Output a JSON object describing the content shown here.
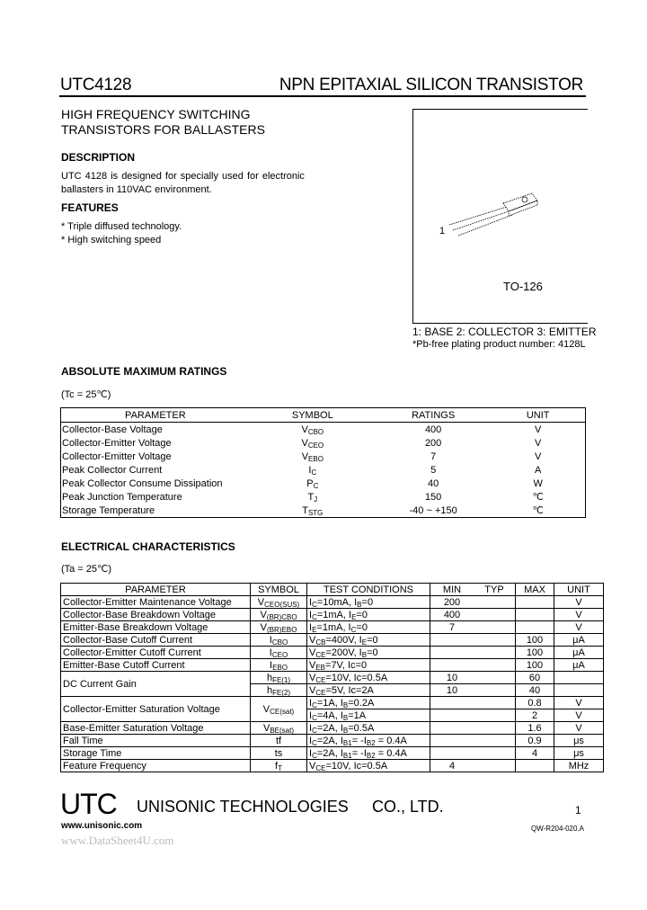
{
  "header": {
    "part": "UTC4128",
    "title": "NPN EPITAXIAL SILICON TRANSISTOR"
  },
  "headline": [
    "HIGH FREQUENCY SWITCHING",
    "TRANSISTORS FOR BALLASTERS"
  ],
  "description": {
    "heading": "DESCRIPTION",
    "lines": [
      "UTC  4128  is  designed  for  specially  used  for  electronic",
      "ballasters in 110VAC environment."
    ]
  },
  "features": {
    "heading": "FEATURES",
    "items": [
      "* Triple diffused technology.",
      "* High switching speed"
    ]
  },
  "package": {
    "name": "TO-126",
    "pin_label": "1",
    "pins": "1: BASE 2: COLLECTOR 3: EMITTER",
    "note": "*Pb-free plating product number: 4128L"
  },
  "abs_max": {
    "heading": "ABSOLUTE MAXIMUM RATINGS",
    "condition": "(Tc = 25℃)",
    "columns": [
      "PARAMETER",
      "SYMBOL",
      "RATINGS",
      "UNIT"
    ],
    "rows": [
      {
        "param": "Collector-Base Voltage",
        "sym": [
          "V",
          "CBO"
        ],
        "rating": "400",
        "unit": "V"
      },
      {
        "param": "Collector-Emitter Voltage",
        "sym": [
          "V",
          "CEO"
        ],
        "rating": "200",
        "unit": "V"
      },
      {
        "param": "Collector-Emitter Voltage",
        "sym": [
          "V",
          "EBO"
        ],
        "rating": "7",
        "unit": "V"
      },
      {
        "param": "Peak Collector Current",
        "sym": [
          "I",
          "C"
        ],
        "rating": "5",
        "unit": "A"
      },
      {
        "param": "Peak Collector Consume Dissipation",
        "sym": [
          "P",
          "C"
        ],
        "rating": "40",
        "unit": "W"
      },
      {
        "param": "Peak Junction Temperature",
        "sym": [
          "T",
          "J"
        ],
        "rating": "150",
        "unit": "℃"
      },
      {
        "param": "Storage Temperature",
        "sym": [
          "T",
          "STG"
        ],
        "rating": "-40 ~ +150",
        "unit": "℃"
      }
    ]
  },
  "electrical": {
    "heading": "ELECTRICAL CHARACTERISTICS",
    "condition": "(Ta = 25℃)",
    "columns": [
      "PARAMETER",
      "SYMBOL",
      "TEST CONDITIONS",
      "MIN",
      "TYP",
      "MAX",
      "UNIT"
    ],
    "rows": [
      {
        "param": "Collector-Emitter Maintenance Voltage",
        "sym": [
          "V",
          "CEO(SUS)"
        ],
        "cond": [
          "I",
          "C",
          "=10mA, I",
          "B",
          "=0"
        ],
        "min": "200",
        "typ": "",
        "max": "",
        "unit": "V"
      },
      {
        "param": "Collector-Base Breakdown Voltage",
        "sym": [
          "V",
          "(BR)CBO"
        ],
        "cond": [
          "I",
          "C",
          "=1mA, I",
          "E",
          "=0"
        ],
        "min": "400",
        "typ": "",
        "max": "",
        "unit": "V"
      },
      {
        "param": "Emitter-Base Breakdown Voltage",
        "sym": [
          "V",
          "(BR)EBO"
        ],
        "cond": [
          "I",
          "E",
          "=1mA, I",
          "C",
          "=0"
        ],
        "min": "7",
        "typ": "",
        "max": "",
        "unit": "V"
      },
      {
        "param": "Collector-Base Cutoff Current",
        "sym": [
          "I",
          "CBO"
        ],
        "cond": [
          "V",
          "CB",
          "=400V, I",
          "E",
          "=0"
        ],
        "min": "",
        "typ": "",
        "max": "100",
        "unit": "μA"
      },
      {
        "param": "Collector-Emitter Cutoff Current",
        "sym": [
          "I",
          "CEO"
        ],
        "cond": [
          "V",
          "CE",
          "=200V, I",
          "B",
          "=0"
        ],
        "min": "",
        "typ": "",
        "max": "100",
        "unit": "μA"
      },
      {
        "param": "Emitter-Base Cutoff Current",
        "sym": [
          "I",
          "EBO"
        ],
        "cond": [
          "V",
          "EB",
          "=7V, Ic=0"
        ],
        "min": "",
        "typ": "",
        "max": "100",
        "unit": "μA"
      },
      {
        "param": "DC Current Gain",
        "span": 2,
        "sym": [
          "h",
          "FE(1)"
        ],
        "cond": [
          "V",
          "CE",
          "=10V, Ic=0.5A"
        ],
        "min": "10",
        "typ": "",
        "max": "60",
        "unit": ""
      },
      {
        "sym": [
          "h",
          "FE(2)"
        ],
        "cond": [
          "V",
          "CE",
          "=5V, Ic=2A"
        ],
        "min": "10",
        "typ": "",
        "max": "40",
        "unit": ""
      },
      {
        "param": "Collector-Emitter Saturation Voltage",
        "span": 2,
        "sym": [
          "V",
          "CE(sat)"
        ],
        "symspan": 2,
        "cond": [
          "I",
          "C",
          "=1A, I",
          "B",
          "=0.2A"
        ],
        "min": "",
        "typ": "",
        "max": "0.8",
        "unit": "V"
      },
      {
        "cond": [
          "I",
          "C",
          "=4A, I",
          "B",
          "=1A"
        ],
        "min": "",
        "typ": "",
        "max": "2",
        "unit": "V"
      },
      {
        "param": "Base-Emitter Saturation Voltage",
        "sym": [
          "V",
          "BE(sat)"
        ],
        "cond": [
          "I",
          "C",
          "=2A, I",
          "B",
          "=0.5A"
        ],
        "min": "",
        "typ": "",
        "max": "1.6",
        "unit": "V"
      },
      {
        "param": "Fall Time",
        "sym": [
          "tf",
          ""
        ],
        "cond": [
          "I",
          "C",
          "=2A, I",
          "B1",
          "= -I",
          "B2",
          " = 0.4A"
        ],
        "min": "",
        "typ": "",
        "max": "0.9",
        "unit": "μs"
      },
      {
        "param": "Storage Time",
        "sym": [
          "ts",
          ""
        ],
        "cond": [
          "I",
          "C",
          "=2A, I",
          "B1",
          "= -I",
          "B2",
          " = 0.4A"
        ],
        "min": "",
        "typ": "",
        "max": "4",
        "unit": "μs"
      },
      {
        "param": "Feature Frequency",
        "sym": [
          "f",
          "T"
        ],
        "cond": [
          "V",
          "CE",
          "=10V, Ic=0.5A"
        ],
        "min": "4",
        "typ": "",
        "max": "",
        "unit": "MHz"
      }
    ]
  },
  "footer": {
    "logo": "UTC",
    "company": "UNISONIC TECHNOLOGIES",
    "company_suffix": "CO., LTD.",
    "page": "1",
    "website": "www.unisonic.com",
    "doc_code": "QW-R204-020.A",
    "watermark": "www.DataSheet4U.com"
  }
}
